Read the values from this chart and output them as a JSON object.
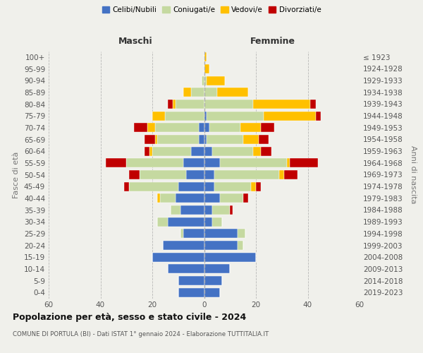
{
  "age_groups": [
    "0-4",
    "5-9",
    "10-14",
    "15-19",
    "20-24",
    "25-29",
    "30-34",
    "35-39",
    "40-44",
    "45-49",
    "50-54",
    "55-59",
    "60-64",
    "65-69",
    "70-74",
    "75-79",
    "80-84",
    "85-89",
    "90-94",
    "95-99",
    "100+"
  ],
  "birth_years": [
    "2019-2023",
    "2014-2018",
    "2009-2013",
    "2004-2008",
    "1999-2003",
    "1994-1998",
    "1989-1993",
    "1984-1988",
    "1979-1983",
    "1974-1978",
    "1969-1973",
    "1964-1968",
    "1959-1963",
    "1954-1958",
    "1949-1953",
    "1944-1948",
    "1939-1943",
    "1934-1938",
    "1929-1933",
    "1924-1928",
    "≤ 1923"
  ],
  "maschi": {
    "celibi": [
      10,
      10,
      14,
      20,
      16,
      8,
      14,
      9,
      11,
      10,
      7,
      8,
      5,
      2,
      2,
      0,
      0,
      0,
      0,
      0,
      0
    ],
    "coniugati": [
      0,
      0,
      0,
      0,
      0,
      1,
      4,
      4,
      6,
      19,
      18,
      22,
      15,
      16,
      17,
      15,
      11,
      5,
      1,
      0,
      0
    ],
    "vedovi": [
      0,
      0,
      0,
      0,
      0,
      0,
      0,
      0,
      1,
      0,
      0,
      0,
      1,
      1,
      3,
      5,
      1,
      3,
      0,
      0,
      0
    ],
    "divorziati": [
      0,
      0,
      0,
      0,
      0,
      0,
      0,
      0,
      0,
      2,
      4,
      8,
      2,
      4,
      5,
      0,
      2,
      0,
      0,
      0,
      0
    ]
  },
  "femmine": {
    "nubili": [
      6,
      7,
      10,
      20,
      13,
      13,
      3,
      3,
      6,
      4,
      4,
      6,
      3,
      1,
      2,
      1,
      0,
      0,
      0,
      0,
      0
    ],
    "coniugate": [
      0,
      0,
      0,
      0,
      2,
      3,
      4,
      7,
      9,
      14,
      25,
      26,
      16,
      14,
      12,
      22,
      19,
      5,
      1,
      0,
      0
    ],
    "vedove": [
      0,
      0,
      0,
      0,
      0,
      0,
      0,
      0,
      0,
      2,
      2,
      1,
      3,
      6,
      8,
      20,
      22,
      12,
      7,
      2,
      1
    ],
    "divorziate": [
      0,
      0,
      0,
      0,
      0,
      0,
      0,
      1,
      2,
      2,
      5,
      11,
      4,
      4,
      5,
      2,
      2,
      0,
      0,
      0,
      0
    ]
  },
  "colors": {
    "celibi_nubili": "#4472c4",
    "coniugati": "#c5d9a0",
    "vedovi": "#ffc000",
    "divorziati": "#c00000"
  },
  "xlim": 60,
  "title": "Popolazione per età, sesso e stato civile - 2024",
  "subtitle": "COMUNE DI PORTULA (BI) - Dati ISTAT 1° gennaio 2024 - Elaborazione TUTTITALIA.IT",
  "ylabel_left": "Fasce di età",
  "ylabel_right": "Anni di nascita",
  "xlabel_left": "Maschi",
  "xlabel_right": "Femmine",
  "background_color": "#f0f0eb"
}
